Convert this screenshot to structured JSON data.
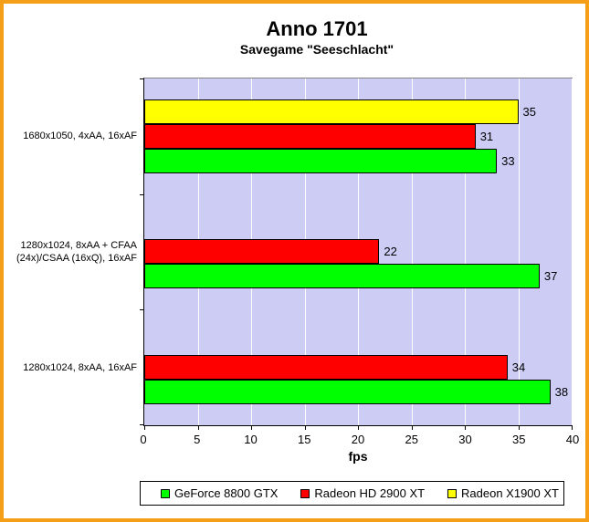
{
  "chart_data": {
    "type": "bar",
    "orientation": "horizontal",
    "title": "Anno 1701",
    "subtitle": "Savegame \"Seeschlacht\"",
    "xlabel": "fps",
    "xlim": [
      0,
      40
    ],
    "xticks": [
      0,
      5,
      10,
      15,
      20,
      25,
      30,
      35,
      40
    ],
    "grid": "vertical white gridlines at each x tick",
    "legend_position": "bottom",
    "categories": [
      "1680x1050, 4xAA, 16xAF",
      "1280x1024, 8xAA + CFAA (24x)/CSAA (16xQ), 16xAF",
      "1280x1024, 8xAA, 16xAF"
    ],
    "series": [
      {
        "name": "GeForce 8800 GTX",
        "color": "#00FF00",
        "values": [
          33,
          37,
          38
        ]
      },
      {
        "name": "Radeon HD 2900 XT",
        "color": "#FF0000",
        "values": [
          31,
          22,
          34
        ]
      },
      {
        "name": "Radeon X1900 XT",
        "color": "#FFFF00",
        "values": [
          35,
          null,
          null
        ]
      }
    ],
    "bar_order_note": "within each category group bars are drawn top-to-bottom in reverse legend order (yellow, red, green)",
    "colors": {
      "background": "#FFFFFF",
      "frame_border": "#F59E18",
      "plot_background": "#CCCCF5",
      "gridline": "#FFFFFF",
      "plot_border": "#848484",
      "axis": "#000000",
      "bar_border": "#000000",
      "text": "#000000"
    }
  }
}
